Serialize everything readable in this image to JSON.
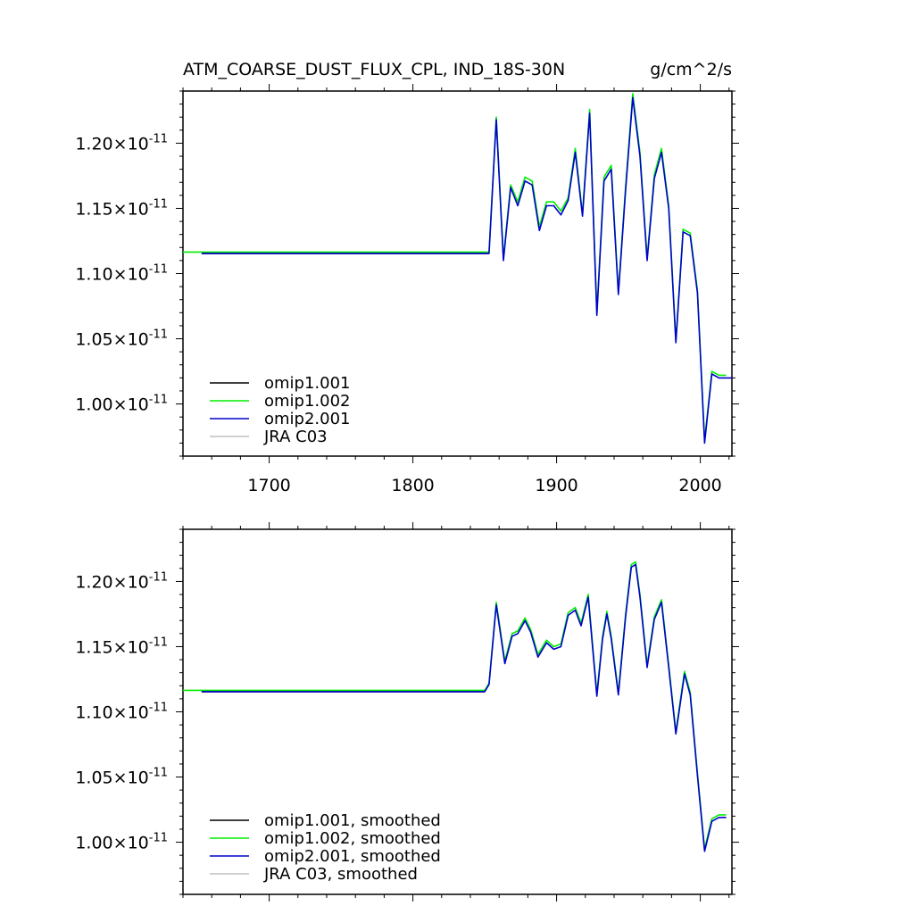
{
  "chart_data": [
    {
      "type": "line",
      "title": "ATM_COARSE_DUST_FLUX_CPL, IND_18S-30N",
      "units": "g/cm^2/s",
      "xlim": [
        1640,
        2022
      ],
      "ylim": [
        9.6e-12,
        1.24e-11
      ],
      "xticks": [
        1700,
        1800,
        1900,
        2000
      ],
      "xtick_labels": [
        "1700",
        "1800",
        "1900",
        "2000"
      ],
      "yticks": [
        1e-11,
        1.05e-11,
        1.1e-11,
        1.15e-11,
        1.2e-11
      ],
      "ytick_labels": [
        {
          "mantissa": "1.00",
          "times": "×10",
          "exp": "-11"
        },
        {
          "mantissa": "1.05",
          "times": "×10",
          "exp": "-11"
        },
        {
          "mantissa": "1.10",
          "times": "×10",
          "exp": "-11"
        },
        {
          "mantissa": "1.15",
          "times": "×10",
          "exp": "-11"
        },
        {
          "mantissa": "1.20",
          "times": "×10",
          "exp": "-11"
        }
      ],
      "grid": false,
      "legend_position": "bottom-left",
      "series": [
        {
          "name": "omip1.001",
          "color": "#000000",
          "points": [
            [
              1653,
              1.1155e-11
            ],
            [
              1853,
              1.1155e-11
            ]
          ]
        },
        {
          "name": "omip1.002",
          "color": "#00ee00",
          "points": [
            [
              1638,
              1.1165e-11
            ],
            [
              1853,
              1.1165e-11
            ],
            [
              1858,
              1.22e-11
            ],
            [
              1863,
              1.112e-11
            ],
            [
              1868,
              1.168e-11
            ],
            [
              1873,
              1.155e-11
            ],
            [
              1878,
              1.174e-11
            ],
            [
              1883,
              1.171e-11
            ],
            [
              1888,
              1.136e-11
            ],
            [
              1893,
              1.155e-11
            ],
            [
              1898,
              1.155e-11
            ],
            [
              1903,
              1.148e-11
            ],
            [
              1908,
              1.158e-11
            ],
            [
              1913,
              1.196e-11
            ],
            [
              1918,
              1.146e-11
            ],
            [
              1923,
              1.226e-11
            ],
            [
              1928,
              1.07e-11
            ],
            [
              1933,
              1.174e-11
            ],
            [
              1938,
              1.183e-11
            ],
            [
              1943,
              1.086e-11
            ],
            [
              1948,
              1.167e-11
            ],
            [
              1953,
              1.238e-11
            ],
            [
              1958,
              1.193e-11
            ],
            [
              1963,
              1.112e-11
            ],
            [
              1968,
              1.176e-11
            ],
            [
              1973,
              1.196e-11
            ],
            [
              1978,
              1.152e-11
            ],
            [
              1983,
              1.049e-11
            ],
            [
              1988,
              1.134e-11
            ],
            [
              1993,
              1.131e-11
            ],
            [
              1998,
              1.087e-11
            ],
            [
              2003,
              9.72e-12
            ],
            [
              2008,
              1.025e-11
            ],
            [
              2013,
              1.022e-11
            ],
            [
              2018,
              1.022e-11
            ]
          ]
        },
        {
          "name": "omip2.001",
          "color": "#0000cc",
          "points": [
            [
              1653,
              1.1155e-11
            ],
            [
              1853,
              1.1155e-11
            ],
            [
              1858,
              1.218e-11
            ],
            [
              1863,
              1.11e-11
            ],
            [
              1868,
              1.166e-11
            ],
            [
              1873,
              1.152e-11
            ],
            [
              1878,
              1.171e-11
            ],
            [
              1883,
              1.168e-11
            ],
            [
              1888,
              1.133e-11
            ],
            [
              1893,
              1.152e-11
            ],
            [
              1898,
              1.152e-11
            ],
            [
              1903,
              1.145e-11
            ],
            [
              1908,
              1.156e-11
            ],
            [
              1913,
              1.193e-11
            ],
            [
              1918,
              1.144e-11
            ],
            [
              1923,
              1.223e-11
            ],
            [
              1928,
              1.068e-11
            ],
            [
              1933,
              1.171e-11
            ],
            [
              1938,
              1.18e-11
            ],
            [
              1943,
              1.084e-11
            ],
            [
              1948,
              1.164e-11
            ],
            [
              1953,
              1.235e-11
            ],
            [
              1958,
              1.19e-11
            ],
            [
              1963,
              1.11e-11
            ],
            [
              1968,
              1.173e-11
            ],
            [
              1973,
              1.193e-11
            ],
            [
              1978,
              1.15e-11
            ],
            [
              1983,
              1.047e-11
            ],
            [
              1988,
              1.132e-11
            ],
            [
              1993,
              1.129e-11
            ],
            [
              1998,
              1.085e-11
            ],
            [
              2003,
              9.7e-12
            ],
            [
              2008,
              1.023e-11
            ],
            [
              2013,
              1.02e-11
            ],
            [
              2022,
              1.02e-11
            ]
          ]
        },
        {
          "name": "JRA C03",
          "color": "#c0c0c0",
          "points": []
        }
      ]
    },
    {
      "type": "line",
      "title": "",
      "xlim": [
        1640,
        2022
      ],
      "ylim": [
        9.6e-12,
        1.24e-11
      ],
      "xticks": [
        1700,
        1800,
        1900,
        2000
      ],
      "xtick_labels": [
        "",
        "",
        "",
        ""
      ],
      "yticks": [
        1e-11,
        1.05e-11,
        1.1e-11,
        1.15e-11,
        1.2e-11
      ],
      "ytick_labels": [
        {
          "mantissa": "1.00",
          "times": "×10",
          "exp": "-11"
        },
        {
          "mantissa": "1.05",
          "times": "×10",
          "exp": "-11"
        },
        {
          "mantissa": "1.10",
          "times": "×10",
          "exp": "-11"
        },
        {
          "mantissa": "1.15",
          "times": "×10",
          "exp": "-11"
        },
        {
          "mantissa": "1.20",
          "times": "×10",
          "exp": "-11"
        }
      ],
      "grid": false,
      "legend_position": "bottom-left",
      "series": [
        {
          "name": "omip1.001, smoothed",
          "color": "#000000",
          "points": [
            [
              1653,
              1.1155e-11
            ],
            [
              1850,
              1.1155e-11
            ]
          ]
        },
        {
          "name": "omip1.002, smoothed",
          "color": "#00ee00",
          "points": [
            [
              1638,
              1.1165e-11
            ],
            [
              1850,
              1.1165e-11
            ],
            [
              1853,
              1.122e-11
            ],
            [
              1858,
              1.184e-11
            ],
            [
              1864,
              1.139e-11
            ],
            [
              1869,
              1.16e-11
            ],
            [
              1873,
              1.162e-11
            ],
            [
              1878,
              1.172e-11
            ],
            [
              1882,
              1.163e-11
            ],
            [
              1887,
              1.144e-11
            ],
            [
              1893,
              1.155e-11
            ],
            [
              1898,
              1.15e-11
            ],
            [
              1903,
              1.152e-11
            ],
            [
              1908,
              1.176e-11
            ],
            [
              1913,
              1.18e-11
            ],
            [
              1917,
              1.168e-11
            ],
            [
              1922,
              1.19e-11
            ],
            [
              1928,
              1.114e-11
            ],
            [
              1932,
              1.158e-11
            ],
            [
              1935,
              1.177e-11
            ],
            [
              1938,
              1.158e-11
            ],
            [
              1943,
              1.115e-11
            ],
            [
              1948,
              1.175e-11
            ],
            [
              1952,
              1.213e-11
            ],
            [
              1955,
              1.215e-11
            ],
            [
              1958,
              1.19e-11
            ],
            [
              1963,
              1.136e-11
            ],
            [
              1968,
              1.173e-11
            ],
            [
              1973,
              1.186e-11
            ],
            [
              1978,
              1.136e-11
            ],
            [
              1983,
              1.085e-11
            ],
            [
              1989,
              1.131e-11
            ],
            [
              1993,
              1.115e-11
            ],
            [
              1998,
              1.053e-11
            ],
            [
              2003,
              9.95e-12
            ],
            [
              2008,
              1.018e-11
            ],
            [
              2013,
              1.021e-11
            ],
            [
              2018,
              1.021e-11
            ]
          ]
        },
        {
          "name": "omip2.001, smoothed",
          "color": "#0000cc",
          "points": [
            [
              1653,
              1.1155e-11
            ],
            [
              1850,
              1.1155e-11
            ],
            [
              1853,
              1.121e-11
            ],
            [
              1858,
              1.182e-11
            ],
            [
              1864,
              1.137e-11
            ],
            [
              1869,
              1.158e-11
            ],
            [
              1873,
              1.16e-11
            ],
            [
              1878,
              1.17e-11
            ],
            [
              1882,
              1.161e-11
            ],
            [
              1887,
              1.142e-11
            ],
            [
              1893,
              1.153e-11
            ],
            [
              1898,
              1.148e-11
            ],
            [
              1903,
              1.15e-11
            ],
            [
              1908,
              1.174e-11
            ],
            [
              1913,
              1.178e-11
            ],
            [
              1917,
              1.166e-11
            ],
            [
              1922,
              1.188e-11
            ],
            [
              1928,
              1.112e-11
            ],
            [
              1932,
              1.156e-11
            ],
            [
              1935,
              1.175e-11
            ],
            [
              1938,
              1.156e-11
            ],
            [
              1943,
              1.113e-11
            ],
            [
              1948,
              1.173e-11
            ],
            [
              1952,
              1.211e-11
            ],
            [
              1955,
              1.213e-11
            ],
            [
              1958,
              1.188e-11
            ],
            [
              1963,
              1.134e-11
            ],
            [
              1968,
              1.171e-11
            ],
            [
              1973,
              1.184e-11
            ],
            [
              1978,
              1.134e-11
            ],
            [
              1983,
              1.083e-11
            ],
            [
              1989,
              1.129e-11
            ],
            [
              1993,
              1.113e-11
            ],
            [
              1998,
              1.051e-11
            ],
            [
              2003,
              9.93e-12
            ],
            [
              2008,
              1.016e-11
            ],
            [
              2013,
              1.019e-11
            ],
            [
              2018,
              1.019e-11
            ]
          ]
        },
        {
          "name": "JRA C03, smoothed",
          "color": "#c0c0c0",
          "points": []
        }
      ]
    }
  ]
}
